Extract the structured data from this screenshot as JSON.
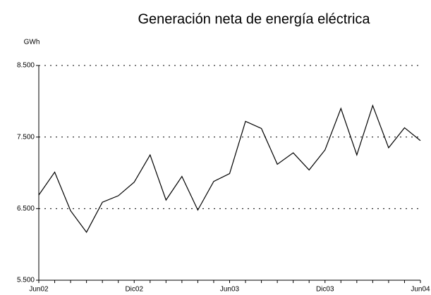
{
  "chart_data": {
    "type": "line",
    "title": "Generación neta de energía eléctrica",
    "y_label": "GWh",
    "categories": [
      "Jun02",
      null,
      null,
      null,
      null,
      null,
      "Dic02",
      null,
      null,
      null,
      null,
      null,
      "Jun03",
      null,
      null,
      null,
      null,
      null,
      "Dic03",
      null,
      null,
      null,
      null,
      null,
      "Jun04"
    ],
    "series": [
      {
        "name": "Generación neta",
        "color": "#000000",
        "values": [
          6690,
          7010,
          6470,
          6170,
          6590,
          6680,
          6870,
          7250,
          6620,
          6950,
          6480,
          6880,
          6990,
          7720,
          7620,
          7120,
          7280,
          7040,
          7320,
          7900,
          7250,
          7940,
          7350,
          7630,
          7450
        ]
      }
    ],
    "ylim": [
      5500,
      8500
    ],
    "yticks": [
      {
        "value": 5500,
        "label": "5.500"
      },
      {
        "value": 6500,
        "label": "6.500"
      },
      {
        "value": 7500,
        "label": "7.500"
      },
      {
        "value": 8500,
        "label": "8.500"
      }
    ],
    "grid": true
  }
}
